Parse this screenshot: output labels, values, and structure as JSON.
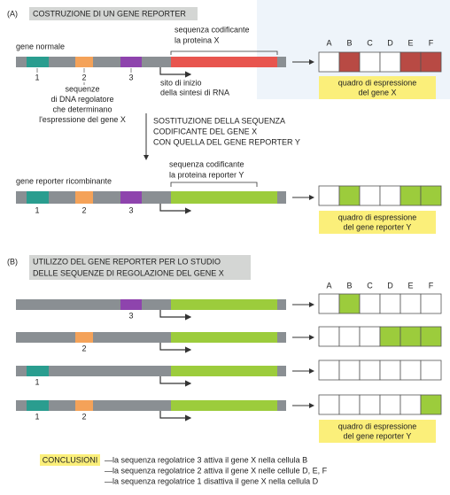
{
  "section_a": {
    "label": "(A)",
    "title": "COSTRUZIONE DI UN GENE REPORTER",
    "normal_gene_label": "gene normale",
    "coding_label": [
      "sequenza codificante",
      "la proteina X"
    ],
    "regulatory_numbers": [
      "1",
      "2",
      "3"
    ],
    "regulatory_label": [
      "sequenze",
      "di DNA regolatore",
      "che determinano",
      "l'espressione del gene X"
    ],
    "start_site_label": [
      "sito di inizio",
      "della sintesi di RNA"
    ],
    "columns": [
      "A",
      "B",
      "C",
      "D",
      "E",
      "F"
    ],
    "expression_label_x": [
      "quadro di espressione",
      "del gene X"
    ],
    "replacement_label": [
      "SOSTITUZIONE DELLA SEQUENZA",
      "CODIFICANTE DEL GENE X",
      "CON QUELLA DEL GENE REPORTER Y"
    ],
    "reporter_gene_label": "gene reporter ricombinante",
    "reporter_coding_label": [
      "sequenza codificante",
      "la proteina reporter Y"
    ],
    "reporter_numbers": [
      "1",
      "2",
      "3"
    ],
    "expression_label_y": [
      "quadro di espressione",
      "del gene reporter Y"
    ]
  },
  "section_b": {
    "label": "(B)",
    "title": [
      "UTILIZZO DEL GENE REPORTER PER LO STUDIO",
      "DELLE SEQUENZE DI REGOLAZIONE DEL GENE X"
    ],
    "columns": [
      "A",
      "B",
      "C",
      "D",
      "E",
      "F"
    ],
    "rows": [
      {
        "numbers": [
          "3"
        ]
      },
      {
        "numbers": [
          "2"
        ]
      },
      {
        "numbers": [
          "1"
        ]
      },
      {
        "numbers": [
          "1",
          "2"
        ]
      }
    ],
    "expression_label": [
      "quadro di espressione",
      "del gene reporter Y"
    ]
  },
  "conclusions": {
    "title": "CONCLUSIONI",
    "lines": [
      "—la sequenza regolatrice 3 attiva il gene X nella cellula B",
      "—la sequenza regolatrice 2 attiva il gene X nelle cellule D, E, F",
      "—la sequenza regolatrice 1 disattiva il gene X nella cellula D"
    ]
  }
}
